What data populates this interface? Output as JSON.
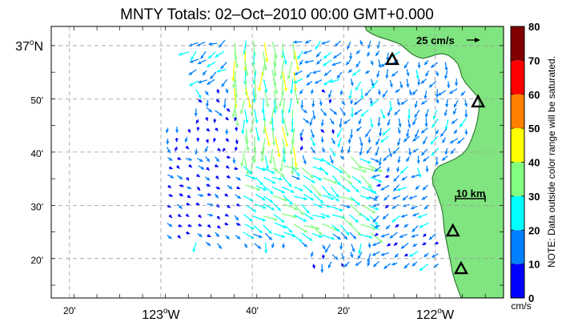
{
  "title": "MNTY Totals: 02–Oct–2010 00:00 GMT+0.000",
  "lat_labels": [
    {
      "deg": "37",
      "min": "",
      "hemi": "N"
    },
    {
      "deg": "",
      "min": "50'",
      "hemi": ""
    },
    {
      "deg": "",
      "min": "40'",
      "hemi": ""
    },
    {
      "deg": "",
      "min": "30'",
      "hemi": ""
    },
    {
      "deg": "",
      "min": "20'",
      "hemi": ""
    }
  ],
  "lon_labels": [
    {
      "deg": "",
      "min": "20'",
      "hemi": ""
    },
    {
      "deg": "123",
      "min": "",
      "hemi": "W"
    },
    {
      "deg": "",
      "min": "40'",
      "hemi": ""
    },
    {
      "deg": "",
      "min": "20'",
      "hemi": ""
    },
    {
      "deg": "122",
      "min": "",
      "hemi": "W"
    }
  ],
  "reference_vector_label": "25 cm/s",
  "scale_bar_label": "10 km",
  "colorbar": {
    "ticks": [
      "80",
      "70",
      "60",
      "50",
      "40",
      "30",
      "20",
      "10",
      "0"
    ],
    "colors": [
      "#0000ff",
      "#0080ff",
      "#00ffff",
      "#80ff80",
      "#ffff00",
      "#ff8000",
      "#ff0000",
      "#800000"
    ],
    "unit": "cm/s",
    "note": "NOTE: Data outside color range will be saturated."
  },
  "colors": {
    "land": "#80e580",
    "coast": "#2e7d32",
    "ocean": "#ffffff",
    "grid": "#9a9a9a"
  },
  "icons": [
    "radar-site-triangle-icon",
    "current-vector-arrow-icon"
  ],
  "radar_sites": [
    {
      "lon": -122.156,
      "lat": 36.955
    },
    {
      "lon": -121.843,
      "lat": 36.822
    },
    {
      "lon": -121.935,
      "lat": 36.418
    },
    {
      "lon": -121.905,
      "lat": 36.3
    }
  ],
  "chart_data": {
    "type": "vector_field",
    "title": "MNTY Totals: 02–Oct–2010 00:00 GMT+0.000",
    "x_axis": {
      "unit": "degrees longitude",
      "lim": [
        -123.4,
        -121.75
      ]
    },
    "y_axis": {
      "unit": "degrees latitude",
      "lim": [
        36.21,
        37.06
      ]
    },
    "color_scale": {
      "variable": "current speed",
      "unit": "cm/s",
      "range": [
        0,
        80
      ],
      "step": 10
    },
    "reference_vector_speed": 25,
    "grid": true
  }
}
